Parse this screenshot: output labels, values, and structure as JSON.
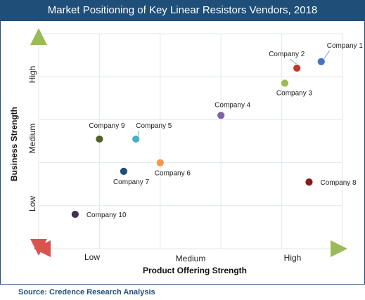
{
  "header": {
    "title": "Market Positioning of Key Linear Resistors Vendors, 2018"
  },
  "footer": {
    "source": "Source: Credence Research Analysis"
  },
  "chart_data": {
    "type": "scatter",
    "title": "Market Positioning of Key Linear Resistors Vendors, 2018",
    "xlabel": "Product Offering Strength",
    "ylabel": "Business Strength",
    "x_tick_labels": [
      "Low",
      "Medium",
      "High"
    ],
    "y_tick_labels": [
      "Low",
      "Medium",
      "High"
    ],
    "xlim": [
      0,
      10
    ],
    "ylim": [
      0,
      10
    ],
    "grid": true,
    "legend": "none",
    "points": [
      {
        "name": "Company 1",
        "x": 9.3,
        "y": 8.7,
        "color": "#4472c4"
      },
      {
        "name": "Company 2",
        "x": 8.5,
        "y": 8.4,
        "color": "#c0392b"
      },
      {
        "name": "Company 3",
        "x": 8.1,
        "y": 7.7,
        "color": "#9bbb59"
      },
      {
        "name": "Company 4",
        "x": 6.0,
        "y": 6.2,
        "color": "#8064a2"
      },
      {
        "name": "Company 5",
        "x": 3.2,
        "y": 5.1,
        "color": "#4bacc6"
      },
      {
        "name": "Company 6",
        "x": 4.0,
        "y": 4.0,
        "color": "#f79646"
      },
      {
        "name": "Company 7",
        "x": 2.8,
        "y": 3.6,
        "color": "#1f4e79"
      },
      {
        "name": "Company 8",
        "x": 8.9,
        "y": 3.1,
        "color": "#8b1a1a"
      },
      {
        "name": "Company 9",
        "x": 2.0,
        "y": 5.1,
        "color": "#4f6228"
      },
      {
        "name": "Company 10",
        "x": 1.2,
        "y": 1.6,
        "color": "#403151"
      }
    ]
  }
}
